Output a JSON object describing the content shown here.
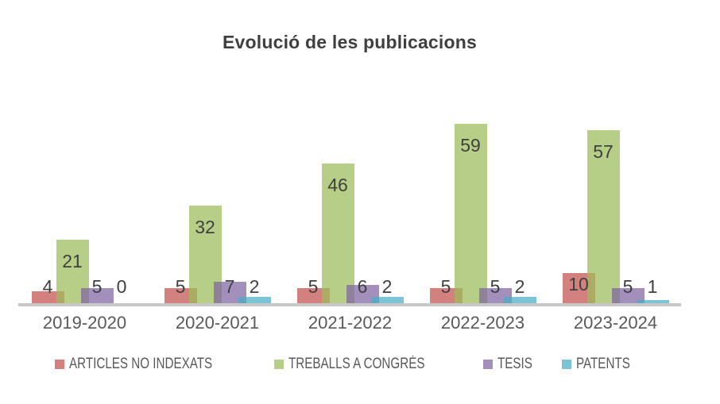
{
  "chart_data": {
    "type": "bar",
    "title": "Evolució de les publicacions",
    "categories": [
      "2019-2020",
      "2020-2021",
      "2021-2022",
      "2022-2023",
      "2023-2024"
    ],
    "series": [
      {
        "name": "ARTICLES NO INDEXATS",
        "color": "#C0504D",
        "values": [
          4,
          5,
          5,
          5,
          10
        ]
      },
      {
        "name": "TREBALLS A CONGRÉS",
        "color": "#9BBB59",
        "values": [
          21,
          32,
          46,
          59,
          57
        ]
      },
      {
        "name": "TESIS",
        "color": "#8064A2",
        "values": [
          5,
          7,
          6,
          5,
          5
        ]
      },
      {
        "name": "PATENTS",
        "color": "#4BACC6",
        "values": [
          0,
          2,
          2,
          2,
          1
        ]
      }
    ],
    "xlabel": "",
    "ylabel": "",
    "ylim": [
      0,
      60
    ],
    "grid": false,
    "y_axis_visible": false,
    "data_labels": true,
    "legend_position": "bottom",
    "style": {
      "title_color": "#3F3F3F",
      "data_label_color": "#404040",
      "axis_label_color": "#595959",
      "legend_text_color": "#595959",
      "axis_line_color": "#C8C8C8",
      "background": "#FFFFFF",
      "series_fill_opacity": 0.72
    }
  }
}
